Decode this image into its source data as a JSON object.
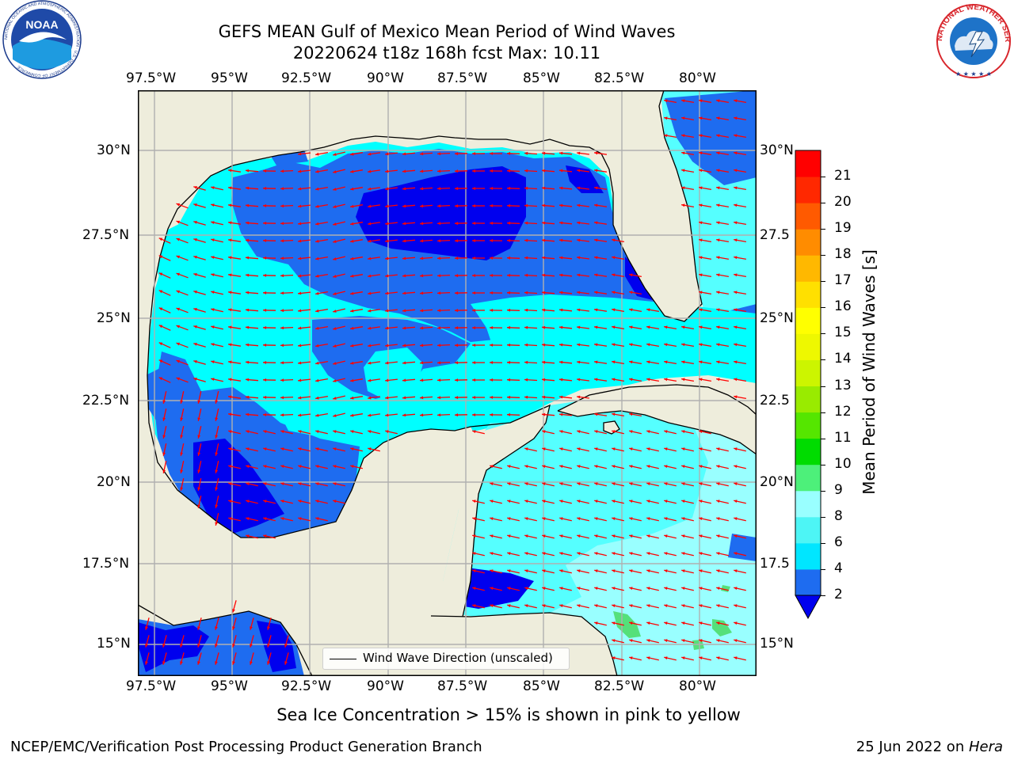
{
  "header": {
    "title_line1": "GEFS MEAN Gulf of Mexico Mean Period of Wind Waves",
    "title_line2": "20220624 t18z 168h fcst   Max: 10.11"
  },
  "logos": {
    "noaa_text": "NOAA",
    "noaa_ring": "NATIONAL OCEANIC AND ATMOSPHERIC ADMINISTRATION · U.S. DEPARTMENT OF COMMERCE",
    "nws_ring": "NATIONAL WEATHER SERVICE"
  },
  "axes": {
    "lon_labels": [
      "97.5°W",
      "95°W",
      "92.5°W",
      "90°W",
      "87.5°W",
      "85°W",
      "82.5°W",
      "80°W"
    ],
    "lat_labels_left": [
      "30°N",
      "27.5°N",
      "25°N",
      "22.5°N",
      "20°N",
      "17.5°N",
      "15°N"
    ],
    "lat_labels_right": [
      "30°N",
      "27.5",
      "25°N",
      "22.5",
      "20°N",
      "17.5",
      "15°N"
    ]
  },
  "colorbar": {
    "label": "Mean Period of Wind Waves [s]",
    "ticks": [
      "2",
      "4",
      "6",
      "8",
      "9",
      "10",
      "11",
      "12",
      "13",
      "14",
      "15",
      "16",
      "17",
      "18",
      "19",
      "20",
      "21"
    ],
    "colors": [
      "#1e6cf0",
      "#00e6ff",
      "#4df5f5",
      "#99ffff",
      "#4df07a",
      "#00dc00",
      "#55e600",
      "#99eb00",
      "#ccf500",
      "#eef800",
      "#ffff00",
      "#ffe000",
      "#ffb800",
      "#ff8c00",
      "#ff5a00",
      "#ff2800",
      "#ff0000"
    ],
    "extend_color": "#0000ee"
  },
  "legend": {
    "label": "Wind Wave Direction (unscaled)"
  },
  "footer": {
    "note": "Sea Ice Concentration > 15% is shown in pink to yellow",
    "credit": "NCEP/EMC/Verification Post Processing Product Generation Branch",
    "date": "25 Jun 2022 on ",
    "machine": "Hera"
  },
  "map_colors": {
    "land": "#eeeddc",
    "coast": "#000000",
    "grid": "#b0b0b0",
    "arrow": "#ff0000",
    "period_2_4": "#1e6cf0",
    "period_lt2": "#0000ee",
    "period_4_6": "#00ffff",
    "period_6_8": "#55ffff",
    "period_8_9": "#99ffff",
    "period_9_10": "#55e07a"
  }
}
